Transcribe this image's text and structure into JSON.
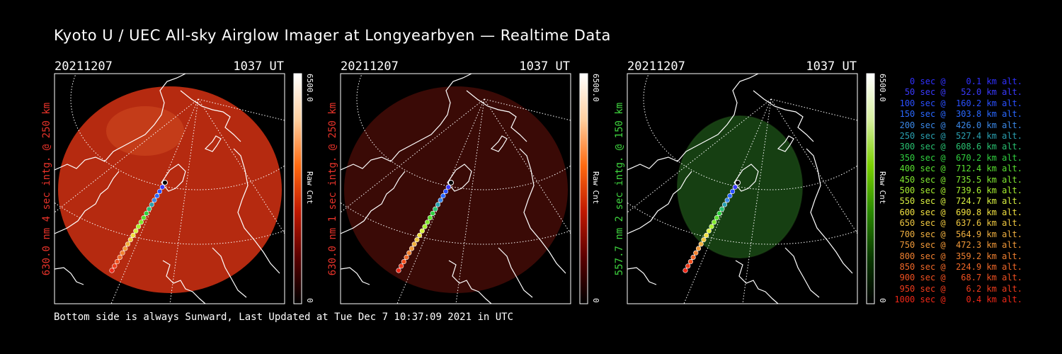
{
  "title": "Kyoto U / UEC All-sky Airglow Imager at Longyearbyen — Realtime Data",
  "footer": "Bottom side is always Sunward, Last Updated at Tue Dec  7 10:37:09 2021 in UTC",
  "chart_data": [
    {
      "type": "heatmap",
      "date": "20211207",
      "time": "1037 UT",
      "ylabel": "630.0 nm 4 sec intg. @ 250 km",
      "colorbar_label": "Raw Cnt",
      "colorbar_max": "6500.0",
      "colorbar_min": "0",
      "colorbar_colors": [
        "#000000",
        "#5a0000",
        "#c01800",
        "#ff6a10",
        "#ffd0a0",
        "#ffffff"
      ],
      "image_color": "#b52a10",
      "accent_color": "#e8332a"
    },
    {
      "type": "heatmap",
      "date": "20211207",
      "time": "1037 UT",
      "ylabel": "630.0 nm 1 sec intg. @ 250 km",
      "colorbar_label": "Raw Cnt",
      "colorbar_max": "6500.0",
      "colorbar_min": "0",
      "colorbar_colors": [
        "#000000",
        "#5a0000",
        "#c01800",
        "#ff6a10",
        "#ffd0a0",
        "#ffffff"
      ],
      "image_color": "#3a0a06",
      "accent_color": "#e8332a"
    },
    {
      "type": "heatmap",
      "date": "20211207",
      "time": "1037 UT",
      "ylabel": "557.7 nm 2 sec intg. @ 150 km",
      "colorbar_label": "Raw Cnt",
      "colorbar_max": "6500.0",
      "colorbar_min": "0",
      "colorbar_colors": [
        "#000000",
        "#0a3a00",
        "#2a8a00",
        "#7ad000",
        "#d8f0a0",
        "#ffffff"
      ],
      "image_color": "#163f12",
      "accent_color": "#3ed43e"
    }
  ],
  "trajectory_legend": [
    {
      "label": "   0 sec @    0.1 km alt.",
      "color": "#3030ff"
    },
    {
      "label": "  50 sec @   52.0 km alt.",
      "color": "#3a3aff"
    },
    {
      "label": " 100 sec @  160.2 km alt.",
      "color": "#2a50ff"
    },
    {
      "label": " 150 sec @  303.8 km alt.",
      "color": "#2a68ff"
    },
    {
      "label": " 200 sec @  426.0 km alt.",
      "color": "#3a88e8"
    },
    {
      "label": " 250 sec @  527.4 km alt.",
      "color": "#2aa0b0"
    },
    {
      "label": " 300 sec @  608.6 km alt.",
      "color": "#28c070"
    },
    {
      "label": " 350 sec @  670.2 km alt.",
      "color": "#30d040"
    },
    {
      "label": " 400 sec @  712.4 km alt.",
      "color": "#58e030"
    },
    {
      "label": " 450 sec @  735.5 km alt.",
      "color": "#80e830"
    },
    {
      "label": " 500 sec @  739.6 km alt.",
      "color": "#a8f030"
    },
    {
      "label": " 550 sec @  724.7 km alt.",
      "color": "#d8f040"
    },
    {
      "label": " 600 sec @  690.8 km alt.",
      "color": "#f0e040"
    },
    {
      "label": " 650 sec @  637.6 km alt.",
      "color": "#f0c840"
    },
    {
      "label": " 700 sec @  564.9 km alt.",
      "color": "#f0b040"
    },
    {
      "label": " 750 sec @  472.3 km alt.",
      "color": "#f09838"
    },
    {
      "label": " 800 sec @  359.2 km alt.",
      "color": "#f08030"
    },
    {
      "label": " 850 sec @  224.9 km alt.",
      "color": "#f06828"
    },
    {
      "label": " 900 sec @   68.7 km alt.",
      "color": "#f05020"
    },
    {
      "label": " 950 sec @    6.2 km alt.",
      "color": "#f03c1c"
    },
    {
      "label": "1000 sec @    0.4 km alt.",
      "color": "#f02818"
    }
  ]
}
